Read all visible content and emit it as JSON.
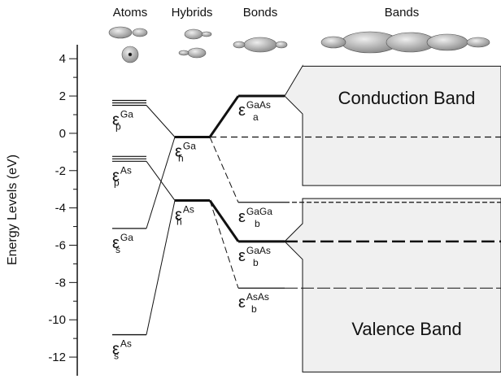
{
  "axis": {
    "label": "Energy Levels (eV)",
    "ylim": [
      -13,
      4.75
    ],
    "yticks": [
      4,
      2,
      0,
      -2,
      -4,
      -6,
      -8,
      -10,
      -12
    ],
    "minor_yticks": [
      3,
      1,
      -1,
      -3,
      -5,
      -7,
      -9,
      -11
    ]
  },
  "columns": [
    {
      "title": "Atoms",
      "levels": [
        {
          "symbol": "ε",
          "sup": "Ga",
          "sub": "p",
          "energy": 1.5
        },
        {
          "symbol": "ε",
          "sup": "As",
          "sub": "p",
          "energy": -1.5
        },
        {
          "symbol": "ε",
          "sup": "Ga",
          "sub": "s",
          "energy": -5.1
        },
        {
          "symbol": "ε",
          "sup": "As",
          "sub": "s",
          "energy": -10.8
        }
      ]
    },
    {
      "title": "Hybrids",
      "levels": [
        {
          "symbol": "ε",
          "sup": "Ga",
          "sub": "h",
          "energy": -0.2
        },
        {
          "symbol": "ε",
          "sup": "As",
          "sub": "h",
          "energy": -3.6
        }
      ]
    },
    {
      "title": "Bonds",
      "levels": [
        {
          "symbol": "ε",
          "sup": "GaAs",
          "sub": "a",
          "energy": 2.0
        },
        {
          "symbol": "ε",
          "sup": "GaGa",
          "sub": "b",
          "energy": -3.7
        },
        {
          "symbol": "ε",
          "sup": "GaAs",
          "sub": "b",
          "energy": -5.8
        },
        {
          "symbol": "ε",
          "sup": "AsAs",
          "sub": "b",
          "energy": -8.3
        }
      ]
    },
    {
      "title": "Bands",
      "bands": [
        {
          "label": "Conduction Band",
          "top": 3.6,
          "bottom": -2.8
        },
        {
          "label": "Valence Band",
          "top": -3.5,
          "bottom": -12.8
        }
      ]
    }
  ]
}
